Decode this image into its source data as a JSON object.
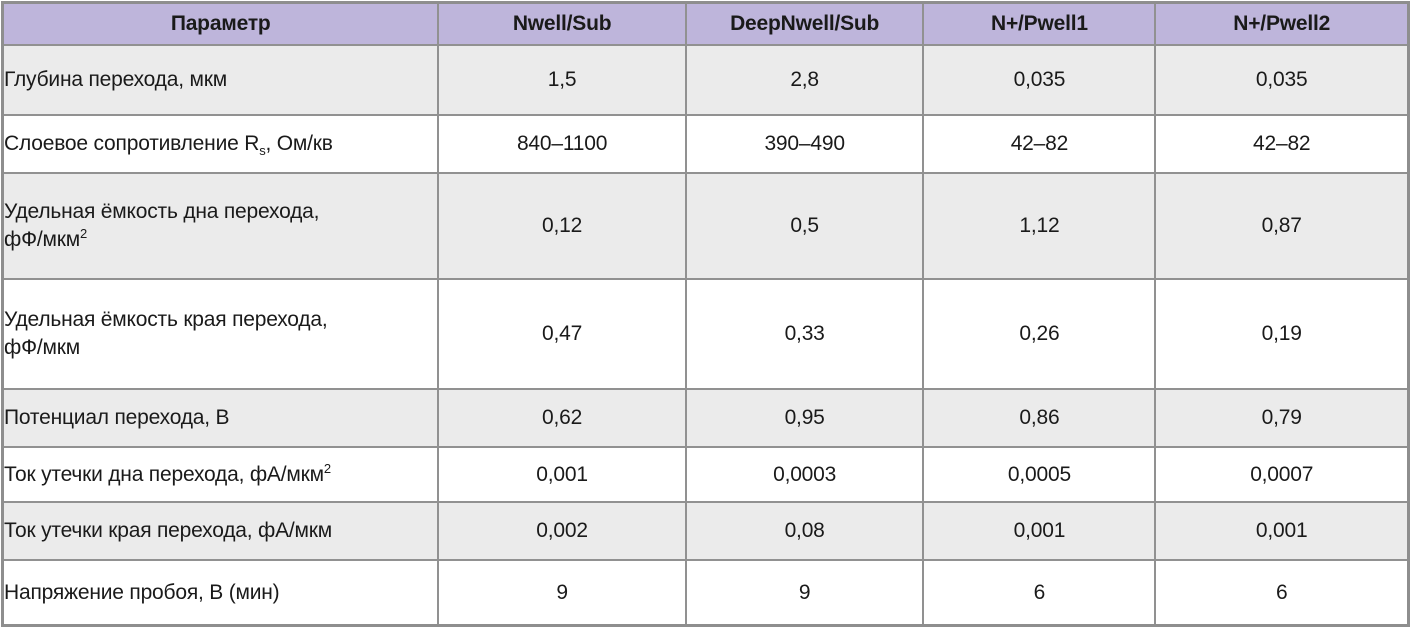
{
  "colors": {
    "header_background": "#beb5db",
    "shaded_row_background": "#ebebeb",
    "plain_row_background": "#ffffff",
    "grid_border": "#919191",
    "outer_border": "#8e8e8e",
    "text": "#1a1a1a"
  },
  "chart_data": {
    "type": "table",
    "title": "",
    "columns": [
      "Параметр",
      "Nwell/Sub",
      "DeepNwell/Sub",
      "N+/Pwell1",
      "N+/Pwell2"
    ],
    "rows": [
      {
        "parameter": "Глубина перехода, мкм",
        "parameter_parts": [
          {
            "t": "Глубина перехода, мкм"
          }
        ],
        "values": [
          "1,5",
          "2,8",
          "0,035",
          "0,035"
        ]
      },
      {
        "parameter": "Слоевое сопротивление Rs, Ом/кв",
        "parameter_parts": [
          {
            "t": "Слоевое сопротивление R"
          },
          {
            "t": "s",
            "m": "sub"
          },
          {
            "t": ", Ом/кв"
          }
        ],
        "values": [
          "840–1100",
          "390–490",
          "42–82",
          "42–82"
        ]
      },
      {
        "parameter": "Удельная ёмкость дна перехода, фФ/мкм²",
        "parameter_parts": [
          {
            "t": "Удельная ёмкость дна перехода,"
          },
          {
            "m": "br"
          },
          {
            "t": "фФ/мкм"
          },
          {
            "t": "2",
            "m": "sup"
          }
        ],
        "values": [
          "0,12",
          "0,5",
          "1,12",
          "0,87"
        ]
      },
      {
        "parameter": "Удельная ёмкость края перехода, фФ/мкм",
        "parameter_parts": [
          {
            "t": "Удельная ёмкость края перехода,"
          },
          {
            "m": "br"
          },
          {
            "t": "фФ/мкм"
          }
        ],
        "values": [
          "0,47",
          "0,33",
          "0,26",
          "0,19"
        ]
      },
      {
        "parameter": "Потенциал перехода, В",
        "parameter_parts": [
          {
            "t": "Потенциал перехода, В"
          }
        ],
        "values": [
          "0,62",
          "0,95",
          "0,86",
          "0,79"
        ]
      },
      {
        "parameter": "Ток утечки дна перехода, фА/мкм²",
        "parameter_parts": [
          {
            "t": "Ток утечки дна перехода, фА/мкм"
          },
          {
            "t": "2",
            "m": "sup"
          }
        ],
        "values": [
          "0,001",
          "0,0003",
          "0,0005",
          "0,0007"
        ]
      },
      {
        "parameter": "Ток утечки края перехода, фА/мкм",
        "parameter_parts": [
          {
            "t": "Ток утечки края перехода, фА/мкм"
          }
        ],
        "values": [
          "0,002",
          "0,08",
          "0,001",
          "0,001"
        ]
      },
      {
        "parameter": "Напряжение пробоя, В (мин)",
        "parameter_parts": [
          {
            "t": "Напряжение пробоя, В (мин)"
          }
        ],
        "values": [
          "9",
          "9",
          "6",
          "6"
        ]
      }
    ]
  }
}
